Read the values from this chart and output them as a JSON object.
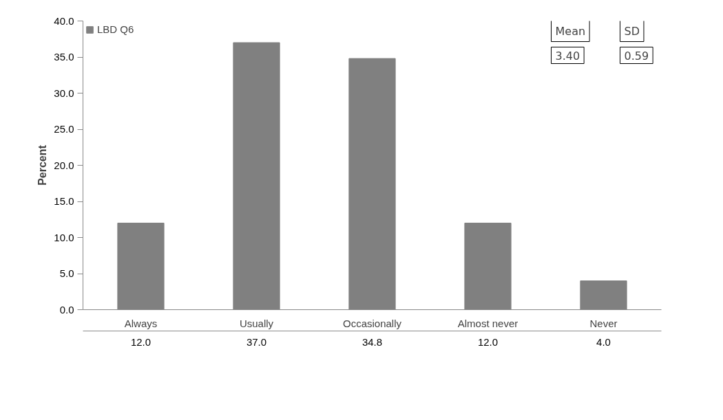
{
  "chart_data": {
    "type": "bar",
    "ylabel": "Percent",
    "categories": [
      "Always",
      "Usually",
      "Occasionally",
      "Almost never",
      "Never"
    ],
    "series": [
      {
        "name": "LBD Q6",
        "color": "#808080",
        "values": [
          12.0,
          37.0,
          34.8,
          12.0,
          4.0
        ],
        "value_labels": [
          "12.0",
          "37.0",
          "34.8",
          "12.0",
          "4.0"
        ]
      }
    ],
    "ylim": [
      0,
      40
    ],
    "yticks": [
      {
        "value": 0,
        "label": "0.0"
      },
      {
        "value": 5,
        "label": "5.0"
      },
      {
        "value": 10,
        "label": "10.0"
      },
      {
        "value": 15,
        "label": "15.0"
      },
      {
        "value": 20,
        "label": "20.0"
      },
      {
        "value": 25,
        "label": "25.0"
      },
      {
        "value": 30,
        "label": "30.0"
      },
      {
        "value": 35,
        "label": "35.0"
      },
      {
        "value": 40,
        "label": "40.0"
      }
    ],
    "grid": false,
    "legend": "top left",
    "annotations": [
      "Mean",
      "SD",
      "3.40",
      "0.59"
    ]
  }
}
